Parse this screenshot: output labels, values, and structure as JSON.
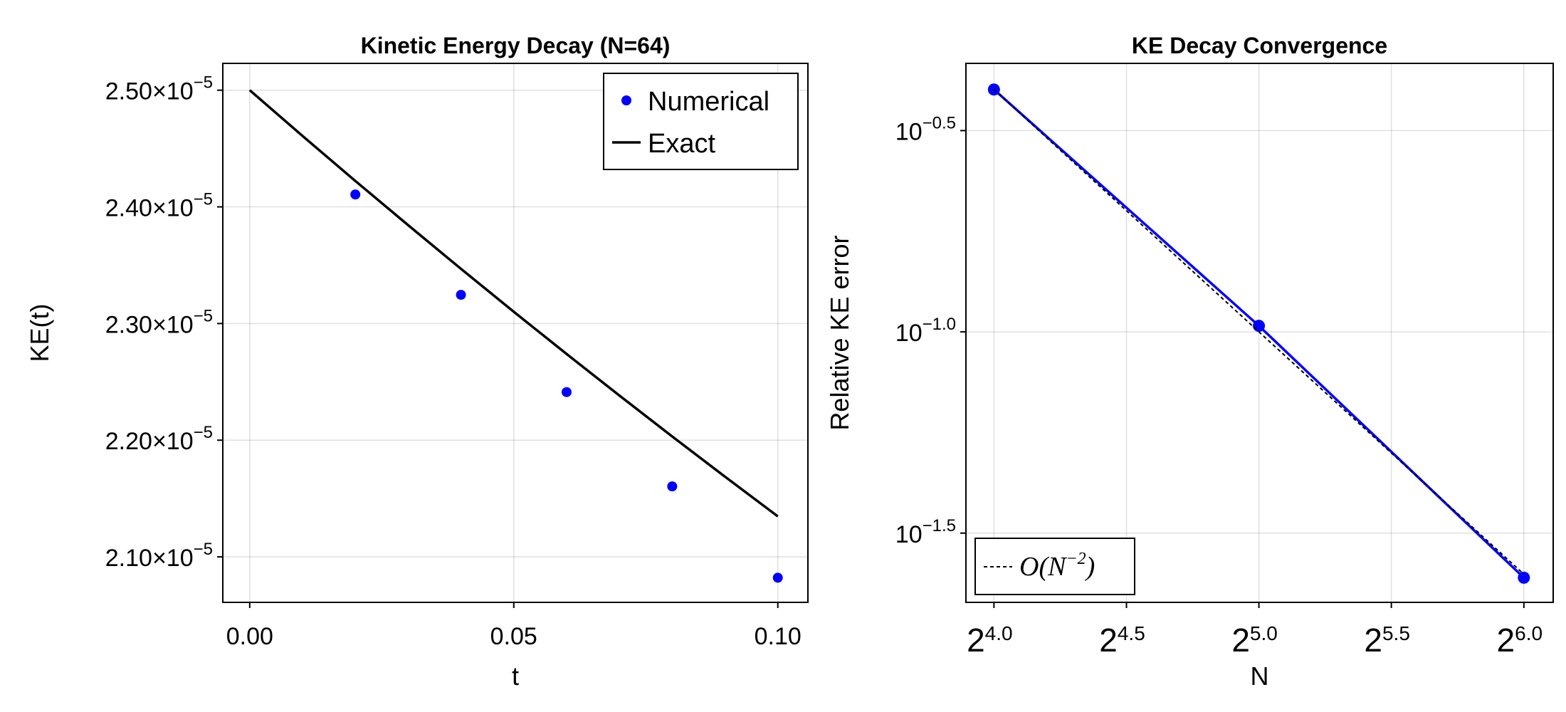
{
  "chart_data": [
    {
      "type": "scatter+line",
      "title": "Kinetic Energy Decay (N=64)",
      "xlabel": "t",
      "ylabel": "KE(t)",
      "xlim": [
        -0.0051,
        0.1057
      ],
      "ylim": [
        2.061e-05,
        2.523e-05
      ],
      "grid": true,
      "legend_position": "top-right",
      "x_ticks": [
        {
          "value": 0.0,
          "label": "0.00"
        },
        {
          "value": 0.05,
          "label": "0.05"
        },
        {
          "value": 0.1,
          "label": "0.10"
        }
      ],
      "y_ticks": [
        {
          "value": 2.5e-05,
          "base": "2.50×10",
          "exp": "−5"
        },
        {
          "value": 2.4e-05,
          "base": "2.40×10",
          "exp": "−5"
        },
        {
          "value": 2.3e-05,
          "base": "2.30×10",
          "exp": "−5"
        },
        {
          "value": 2.2e-05,
          "base": "2.20×10",
          "exp": "−5"
        },
        {
          "value": 2.1e-05,
          "base": "2.10×10",
          "exp": "−5"
        }
      ],
      "series": [
        {
          "name": "Numerical",
          "kind": "scatter",
          "color": "#0000ff",
          "x": [
            0.02,
            0.04,
            0.06,
            0.08,
            0.1
          ],
          "y": [
            2.4106e-05,
            2.3246e-05,
            2.2412e-05,
            2.1604e-05,
            2.0821e-05
          ]
        },
        {
          "name": "Exact",
          "kind": "line",
          "color": "#000000",
          "x": [
            0,
            0.01,
            0.02,
            0.03,
            0.04,
            0.05,
            0.06,
            0.07,
            0.08,
            0.09,
            0.1
          ],
          "y": [
            2.5e-05,
            2.4608e-05,
            2.4222e-05,
            2.3843e-05,
            2.3469e-05,
            2.3101e-05,
            2.2739e-05,
            2.2383e-05,
            2.2032e-05,
            2.1687e-05,
            2.1347e-05
          ]
        }
      ]
    },
    {
      "type": "line",
      "title": "KE Decay Convergence",
      "xlabel": "N",
      "ylabel": "Relative KE error",
      "xscale": "log2",
      "yscale": "log10",
      "xlim": [
        14.87,
        69.1
      ],
      "ylim": [
        0.02128,
        0.4645
      ],
      "grid": true,
      "legend_position": "bottom-left",
      "x_ticks": [
        {
          "value": 16,
          "base": "2",
          "exp": "4.0"
        },
        {
          "value": 22.63,
          "base": "2",
          "exp": "4.5"
        },
        {
          "value": 32,
          "base": "2",
          "exp": "5.0"
        },
        {
          "value": 45.25,
          "base": "2",
          "exp": "5.5"
        },
        {
          "value": 64,
          "base": "2",
          "exp": "6.0"
        }
      ],
      "y_ticks": [
        {
          "value": 0.3162,
          "base": "10",
          "exp": "−0.5"
        },
        {
          "value": 0.1,
          "base": "10",
          "exp": "−1.0"
        },
        {
          "value": 0.03162,
          "base": "10",
          "exp": "−1.5"
        }
      ],
      "series": [
        {
          "kind": "line+markers",
          "color": "#0000ff",
          "x": [
            16,
            32,
            64
          ],
          "y": [
            0.4,
            0.1035,
            0.0245
          ]
        },
        {
          "name": "O(N⁻²)",
          "name_base": "O(N",
          "name_exp": "−2",
          "name_close": ")",
          "kind": "dashed",
          "color": "#000000",
          "x": [
            16,
            32,
            64
          ],
          "y": [
            0.4,
            0.1,
            0.025
          ]
        }
      ]
    }
  ]
}
